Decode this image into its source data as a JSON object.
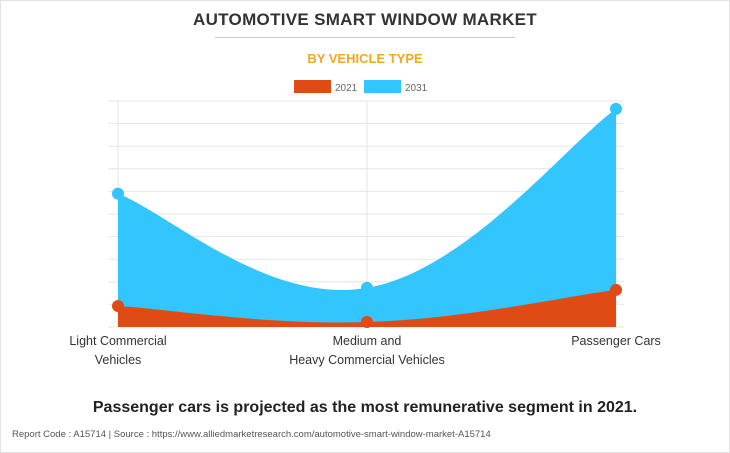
{
  "chart_data": {
    "type": "area",
    "title": "AUTOMOTIVE SMART WINDOW MARKET",
    "subtitle": "BY VEHICLE TYPE",
    "categories": [
      [
        "Light Commercial",
        "Vehicles"
      ],
      [
        "Medium and",
        "Heavy Commercial Vehicles"
      ],
      [
        "Passenger Cars"
      ]
    ],
    "series": [
      {
        "name": "2021",
        "color": "#e04a14",
        "values": [
          0.93,
          0.22,
          1.64
        ]
      },
      {
        "name": "2031",
        "color": "#33c5fd",
        "values": [
          5.9,
          1.73,
          9.65
        ]
      }
    ],
    "ylim": [
      0,
      10
    ],
    "y_ticks_shown": false,
    "grid": true,
    "legend": "top-center"
  },
  "caption": "Passenger cars is projected as the most remunerative segment in 2021.",
  "footer": "Report Code : A15714  |  Source : https://www.alliedmarketresearch.com/automotive-smart-window-market-A15714"
}
